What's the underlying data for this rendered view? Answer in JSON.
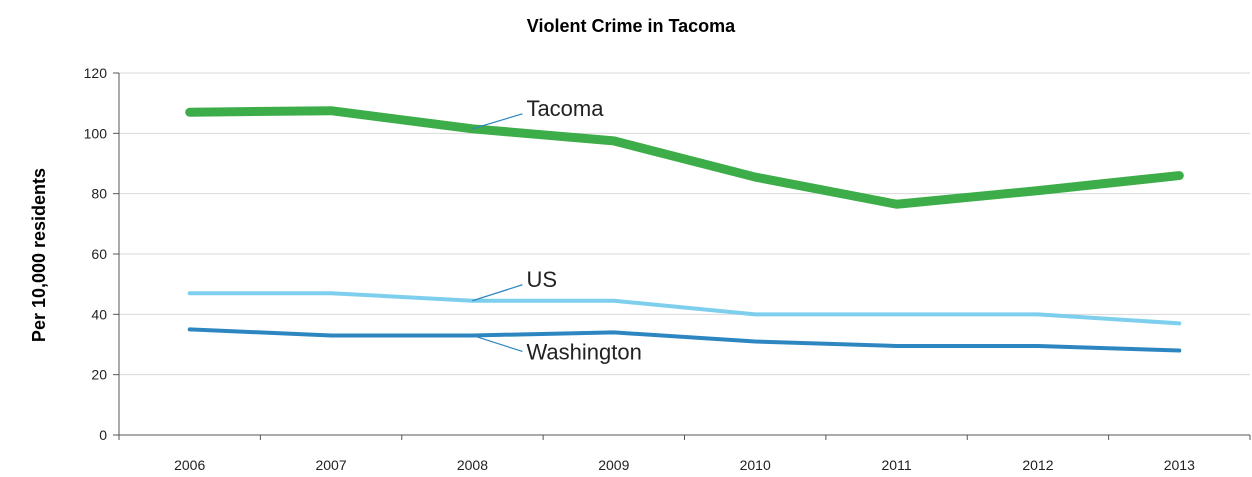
{
  "chart_data": {
    "type": "line",
    "title": "Violent Crime in Tacoma",
    "xlabel": "",
    "ylabel": "Per 10,000 residents",
    "categories": [
      "2006",
      "2007",
      "2008",
      "2009",
      "2010",
      "2011",
      "2012",
      "2013"
    ],
    "yticks": [
      "0",
      "20",
      "40",
      "60",
      "80",
      "100",
      "120"
    ],
    "ylim": [
      0,
      120
    ],
    "grid": true,
    "series": [
      {
        "name": "Tacoma",
        "values": [
          107,
          107.5,
          101.5,
          97.5,
          85.5,
          76.5,
          81,
          86
        ],
        "color": "#3cad48"
      },
      {
        "name": "US",
        "values": [
          47,
          47,
          44.5,
          44.5,
          40,
          40,
          40,
          37
        ],
        "color": "#7dcfed"
      },
      {
        "name": "Washington",
        "values": [
          35,
          33,
          33,
          34,
          31,
          29.5,
          29.5,
          28
        ],
        "color": "#2e86c1"
      }
    ]
  }
}
